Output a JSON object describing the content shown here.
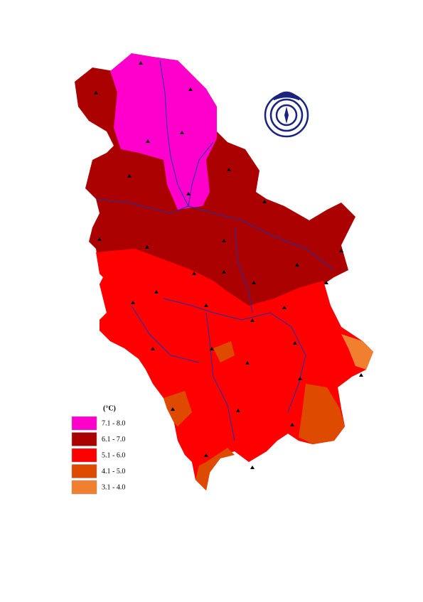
{
  "legend": {
    "title": "(°C)",
    "items": [
      {
        "label": "7.1 - 8.0",
        "color": "#ff00cc"
      },
      {
        "label": "6.1 - 7.0",
        "color": "#aa0000"
      },
      {
        "label": "5.1 - 6.0",
        "color": "#ff0000"
      },
      {
        "label": "4.1 - 5.0",
        "color": "#dd4a00"
      },
      {
        "label": "3.1 - 4.0",
        "color": "#f08030"
      }
    ]
  }
}
